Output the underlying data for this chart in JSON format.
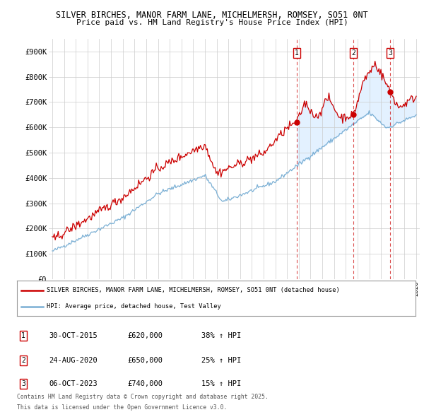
{
  "title1": "SILVER BIRCHES, MANOR FARM LANE, MICHELMERSH, ROMSEY, SO51 0NT",
  "title2": "Price paid vs. HM Land Registry's House Price Index (HPI)",
  "ylim": [
    0,
    950000
  ],
  "yticks": [
    0,
    100000,
    200000,
    300000,
    400000,
    500000,
    600000,
    700000,
    800000,
    900000
  ],
  "ytick_labels": [
    "£0",
    "£100K",
    "£200K",
    "£300K",
    "£400K",
    "£500K",
    "£600K",
    "£700K",
    "£800K",
    "£900K"
  ],
  "xlim_start": 1994.7,
  "xlim_end": 2026.3,
  "sale_dates": [
    2015.83,
    2020.65,
    2023.76
  ],
  "sale_prices": [
    620000,
    650000,
    740000
  ],
  "sale_labels": [
    "1",
    "2",
    "3"
  ],
  "sale_info": [
    {
      "num": "1",
      "date": "30-OCT-2015",
      "price": "£620,000",
      "hpi": "38% ↑ HPI"
    },
    {
      "num": "2",
      "date": "24-AUG-2020",
      "price": "£650,000",
      "hpi": "25% ↑ HPI"
    },
    {
      "num": "3",
      "date": "06-OCT-2023",
      "price": "£740,000",
      "hpi": "15% ↑ HPI"
    }
  ],
  "legend_line1": "SILVER BIRCHES, MANOR FARM LANE, MICHELMERSH, ROMSEY, SO51 0NT (detached house)",
  "legend_line2": "HPI: Average price, detached house, Test Valley",
  "footer1": "Contains HM Land Registry data © Crown copyright and database right 2025.",
  "footer2": "This data is licensed under the Open Government Licence v3.0.",
  "red_color": "#cc0000",
  "blue_color": "#7aafd4",
  "fill_color": "#ddeeff",
  "bg_color": "#ffffff",
  "grid_color": "#cccccc"
}
